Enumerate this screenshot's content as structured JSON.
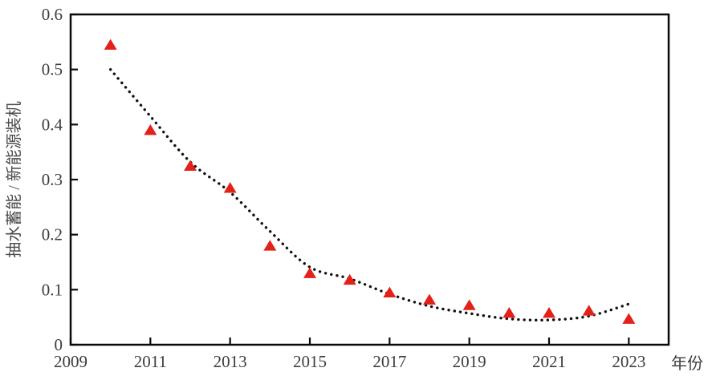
{
  "figure": {
    "background": "#ffffff",
    "axis_color": "#0a0a0a",
    "tick_label_color": "#3d3d3d",
    "axis_title_color": "#4a4a4a",
    "marker_color": "#e32119",
    "trendline_color": "#111111"
  },
  "chart_data": {
    "type": "scatter",
    "title": "",
    "xlabel": "年份",
    "ylabel": "抽水蓄能 / 新能源装机",
    "xlim": [
      2009,
      2024
    ],
    "ylim": [
      0,
      0.6
    ],
    "x_ticks": [
      2009,
      2011,
      2013,
      2015,
      2017,
      2019,
      2021,
      2023
    ],
    "x_tick_labels": [
      "2009",
      "2011",
      "2013",
      "2015",
      "2017",
      "2019",
      "2021",
      "2023"
    ],
    "y_ticks": [
      0,
      0.1,
      0.2,
      0.3,
      0.4,
      0.5,
      0.6
    ],
    "y_tick_labels": [
      "0",
      "0.1",
      "0.2",
      "0.3",
      "0.4",
      "0.5",
      "0.6"
    ],
    "grid": false,
    "legend": "none",
    "points": {
      "marker": "triangle-up",
      "x": [
        2010,
        2011,
        2012,
        2013,
        2014,
        2015,
        2016,
        2017,
        2018,
        2019,
        2020,
        2021,
        2022,
        2023
      ],
      "y": [
        0.545,
        0.39,
        0.325,
        0.285,
        0.18,
        0.13,
        0.118,
        0.095,
        0.082,
        0.072,
        0.058,
        0.058,
        0.062,
        0.047
      ]
    },
    "trendline": {
      "style": "dotted",
      "x": [
        2010,
        2011,
        2012,
        2013,
        2014,
        2015,
        2016,
        2017,
        2018,
        2019,
        2020,
        2021,
        2022,
        2023
      ],
      "y": [
        0.5,
        0.415,
        0.332,
        0.277,
        0.206,
        0.141,
        0.12,
        0.092,
        0.07,
        0.057,
        0.047,
        0.045,
        0.052,
        0.074
      ]
    }
  }
}
